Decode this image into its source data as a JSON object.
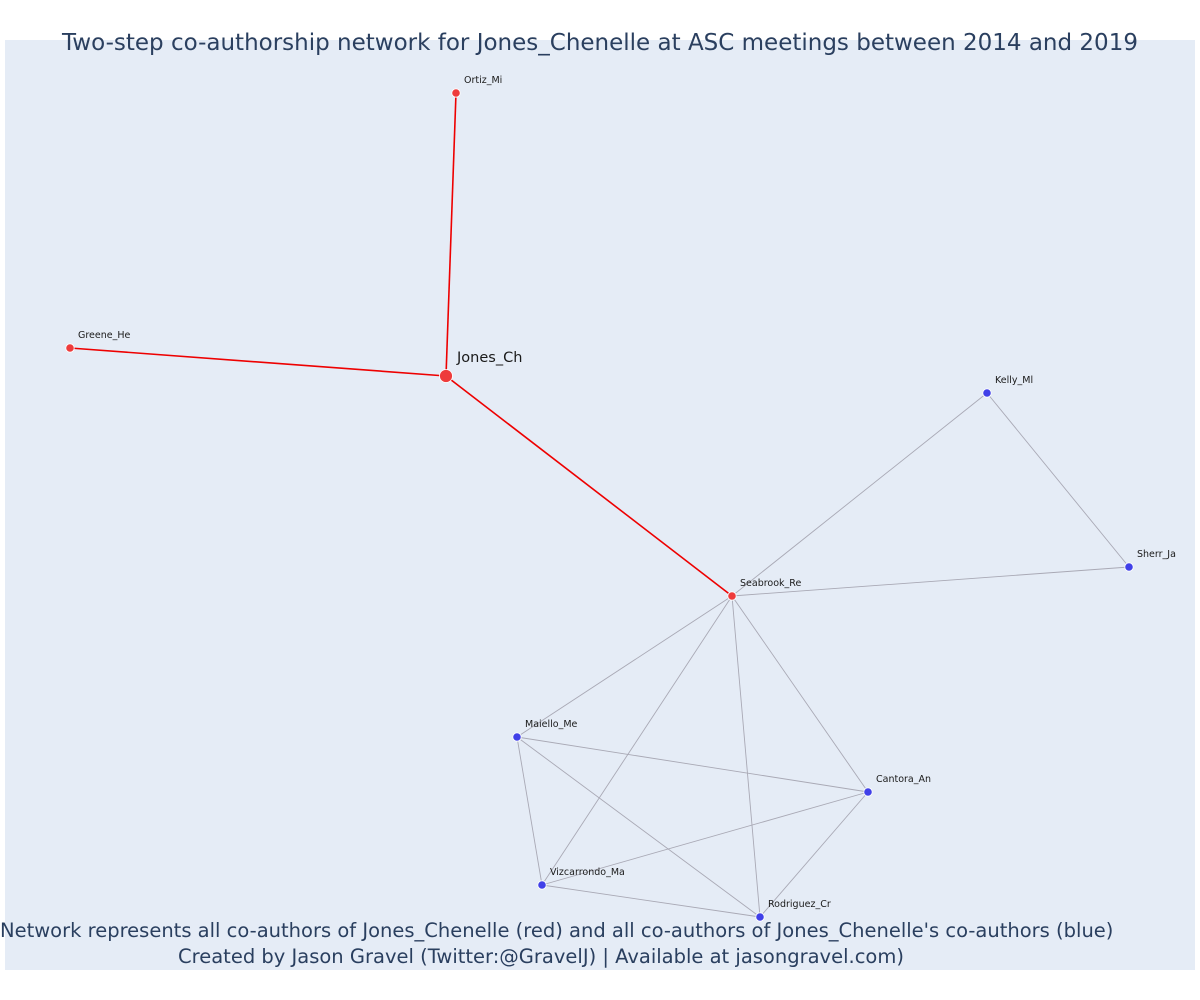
{
  "title": "Two-step co-authorship network for Jones_Chenelle at ASC meetings between 2014 and 2019",
  "caption": {
    "line1": "Network represents all co-authors of Jones_Chenelle (red) and all co-authors of Jones_Chenelle's co-authors (blue)",
    "line2": "Created by Jason Gravel (Twitter:@GravelJ) | Available at jasongravel.com)"
  },
  "colors": {
    "background": "#e5ecf6",
    "red_node": "#ee3b3b",
    "blue_node": "#4040e8",
    "red_edge": "#ee0000",
    "grey_edge": "#a9a9b5"
  },
  "nodes": [
    {
      "id": "Jones_Ch",
      "group": "focal",
      "color": "red"
    },
    {
      "id": "Ortiz_Mi",
      "group": "coauthor",
      "color": "red"
    },
    {
      "id": "Greene_He",
      "group": "coauthor",
      "color": "red"
    },
    {
      "id": "Seabrook_Re",
      "group": "coauthor",
      "color": "red"
    },
    {
      "id": "Kelly_Ml",
      "group": "second",
      "color": "blue"
    },
    {
      "id": "Sherr_Ja",
      "group": "second",
      "color": "blue"
    },
    {
      "id": "Maiello_Me",
      "group": "second",
      "color": "blue"
    },
    {
      "id": "Cantora_An",
      "group": "second",
      "color": "blue"
    },
    {
      "id": "Vizcarrondo_Ma",
      "group": "second",
      "color": "blue"
    },
    {
      "id": "Rodriguez_Cr",
      "group": "second",
      "color": "blue"
    }
  ],
  "edges": [
    {
      "source": "Jones_Ch",
      "target": "Ortiz_Mi",
      "type": "red"
    },
    {
      "source": "Jones_Ch",
      "target": "Greene_He",
      "type": "red"
    },
    {
      "source": "Jones_Ch",
      "target": "Seabrook_Re",
      "type": "red"
    },
    {
      "source": "Seabrook_Re",
      "target": "Kelly_Ml",
      "type": "grey"
    },
    {
      "source": "Kelly_Ml",
      "target": "Sherr_Ja",
      "type": "grey"
    },
    {
      "source": "Seabrook_Re",
      "target": "Sherr_Ja",
      "type": "grey"
    },
    {
      "source": "Seabrook_Re",
      "target": "Maiello_Me",
      "type": "grey"
    },
    {
      "source": "Seabrook_Re",
      "target": "Cantora_An",
      "type": "grey"
    },
    {
      "source": "Seabrook_Re",
      "target": "Vizcarrondo_Ma",
      "type": "grey"
    },
    {
      "source": "Seabrook_Re",
      "target": "Rodriguez_Cr",
      "type": "grey"
    },
    {
      "source": "Maiello_Me",
      "target": "Cantora_An",
      "type": "grey"
    },
    {
      "source": "Maiello_Me",
      "target": "Vizcarrondo_Ma",
      "type": "grey"
    },
    {
      "source": "Maiello_Me",
      "target": "Rodriguez_Cr",
      "type": "grey"
    },
    {
      "source": "Vizcarrondo_Ma",
      "target": "Cantora_An",
      "type": "grey"
    },
    {
      "source": "Vizcarrondo_Ma",
      "target": "Rodriguez_Cr",
      "type": "grey"
    },
    {
      "source": "Cantora_An",
      "target": "Rodriguez_Cr",
      "type": "grey"
    }
  ]
}
